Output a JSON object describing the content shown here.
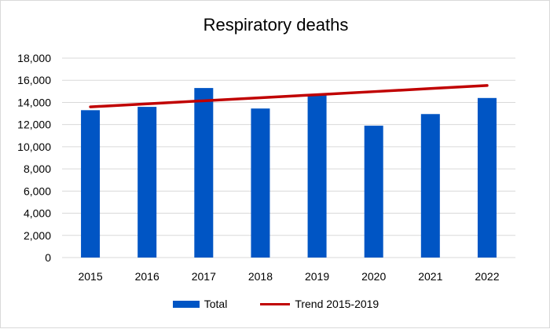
{
  "chart_data": {
    "type": "bar",
    "title": "Respiratory deaths",
    "categories": [
      "2015",
      "2016",
      "2017",
      "2018",
      "2019",
      "2020",
      "2021",
      "2022"
    ],
    "series": [
      {
        "name": "Total",
        "type": "bar",
        "color": "#0055c4",
        "values": [
          13300,
          13600,
          15300,
          13450,
          14700,
          11900,
          12950,
          14400
        ]
      },
      {
        "name": "Trend 2015-2019",
        "type": "line",
        "color": "#c00000",
        "values": [
          13600,
          13875,
          14150,
          14425,
          14700,
          14975,
          15250,
          15525
        ]
      }
    ],
    "ylim": [
      0,
      18000
    ],
    "yticks": [
      0,
      2000,
      4000,
      6000,
      8000,
      10000,
      12000,
      14000,
      16000,
      18000
    ],
    "ytick_labels": [
      "0",
      "2,000",
      "4,000",
      "6,000",
      "8,000",
      "10,000",
      "12,000",
      "14,000",
      "16,000",
      "18,000"
    ],
    "grid": true,
    "legend": "bottom"
  }
}
